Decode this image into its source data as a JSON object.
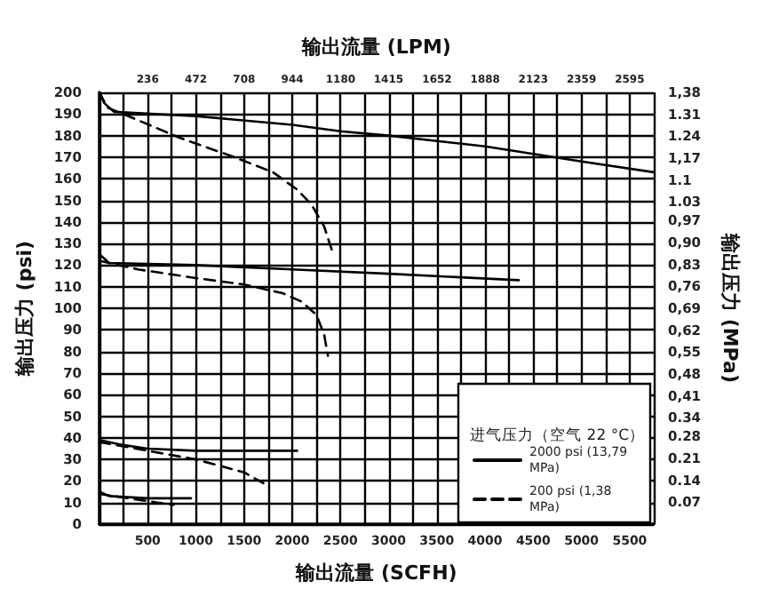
{
  "chart_data": {
    "type": "line",
    "xlabel": "输出流量 (SCFH)",
    "x2label": "输出流量 (LPM)",
    "ylabel": "输出压力 (psi)",
    "y2label": "输出压力 (MPa)",
    "legend_title": "进气压力（空气 22 °C）",
    "xlim": [
      0,
      5750
    ],
    "xticks": [
      {
        "value": 250,
        "label": null
      },
      500,
      {
        "value": 750,
        "label": null
      },
      1000,
      {
        "value": 1250,
        "label": null
      },
      1500,
      {
        "value": 1750,
        "label": null
      },
      2000,
      {
        "value": 2250,
        "label": null
      },
      2500,
      {
        "value": 2750,
        "label": null
      },
      3000,
      {
        "value": 3250,
        "label": null
      },
      3500,
      {
        "value": 3750,
        "label": null
      },
      4000,
      {
        "value": 4250,
        "label": null
      },
      4500,
      {
        "value": 4750,
        "label": null
      },
      5000,
      {
        "value": 5250,
        "label": null
      },
      5500
    ],
    "x2lim": [
      0,
      2713
    ],
    "x2ticks": [
      236,
      472,
      708,
      944,
      1180,
      1415,
      1652,
      1888,
      2123,
      2359,
      2595
    ],
    "ylim": [
      0,
      200
    ],
    "yticks": [
      0,
      10,
      20,
      30,
      40,
      50,
      60,
      70,
      80,
      90,
      100,
      110,
      120,
      130,
      140,
      150,
      160,
      170,
      180,
      190,
      200
    ],
    "y2lim": [
      0,
      1.38
    ],
    "y2ticks": [
      0.07,
      0.14,
      0.21,
      0.28,
      0.34,
      {
        "value": 0.41,
        "label": "0,41"
      },
      {
        "value": 0.48,
        "label": "0,48"
      },
      {
        "value": 0.55,
        "label": "0,55"
      },
      {
        "value": 0.62,
        "label": "0,62"
      },
      {
        "value": 0.69,
        "label": "0,69"
      },
      {
        "value": 0.76,
        "label": "0,76"
      },
      {
        "value": 0.83,
        "label": "0,83"
      },
      {
        "value": 0.9,
        "label": "0,90"
      },
      {
        "value": 0.97,
        "label": "0,97"
      },
      1.03,
      1.1,
      {
        "value": 1.17,
        "label": "1,17"
      },
      1.24,
      1.31,
      {
        "value": 1.38,
        "label": "1,38"
      }
    ],
    "grid": true,
    "legend": "bottom right",
    "marker": "none",
    "series": [
      {
        "name": "2000 psi (13,79 MPa)",
        "color": "#000000",
        "line_style": "solid",
        "x": [
          0,
          50,
          150,
          1000,
          2000,
          2500,
          3000,
          4000,
          5000,
          5750
        ],
        "values": [
          200,
          195,
          191,
          189,
          185,
          182,
          180,
          175,
          168,
          163
        ]
      },
      {
        "name": "200 psi (1,38 MPa)",
        "color": "#000000",
        "line_style": "dashed",
        "x": [
          0,
          80,
          300,
          830,
          1400,
          1800,
          2050,
          2200,
          2330,
          2425
        ],
        "values": [
          200,
          193,
          189,
          179,
          170,
          163,
          155,
          148,
          138,
          125
        ]
      },
      {
        "color": "#000000",
        "line_style": "solid",
        "x": [
          0,
          100,
          1000,
          2000,
          3000,
          4350
        ],
        "values": [
          125,
          121,
          120,
          118,
          116,
          113
        ]
      },
      {
        "color": "#000000",
        "line_style": "dashed",
        "x": [
          0,
          400,
          1000,
          1500,
          1900,
          2100,
          2250,
          2330,
          2370
        ],
        "values": [
          122,
          118,
          114,
          111,
          107,
          103,
          97,
          88,
          78
        ]
      },
      {
        "color": "#000000",
        "line_style": "solid",
        "x": [
          0,
          200,
          500,
          1000,
          2050
        ],
        "values": [
          39,
          37,
          35,
          34,
          34
        ]
      },
      {
        "color": "#000000",
        "line_style": "dashed",
        "x": [
          0,
          500,
          1000,
          1500,
          1700
        ],
        "values": [
          38,
          34,
          30,
          24,
          19
        ]
      },
      {
        "color": "#000000",
        "line_style": "solid",
        "x": [
          0,
          100,
          500,
          950
        ],
        "values": [
          15,
          13,
          12,
          12
        ]
      },
      {
        "color": "#000000",
        "line_style": "dashed",
        "x": [
          0,
          300,
          600,
          770
        ],
        "values": [
          14,
          12,
          10,
          9
        ]
      }
    ]
  }
}
